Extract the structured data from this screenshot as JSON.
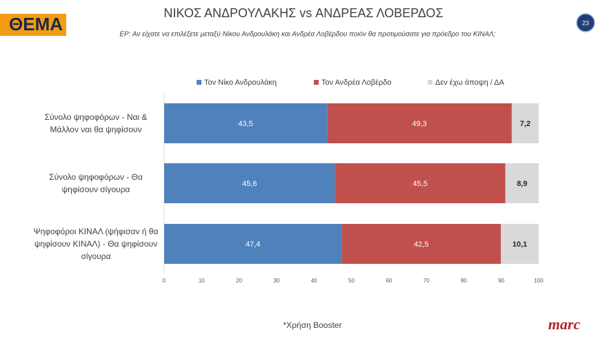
{
  "header": {
    "logo": "ΘΕΜΑ",
    "title": "ΝΙΚΟΣ ΑΝΔΡΟΥΛΑΚΗΣ vs ΑΝΔΡΕΑΣ ΛΟΒΕΡΔΟΣ",
    "subtitle": "ΕΡ: Αν είχατε να επιλέξετε μεταξύ Νίκου Ανδρουλάκη και Ανδρέα Λοβέρδου ποιόν θα προτιμούσατε για πρόεδρο του ΚΙΝΑΛ;",
    "page_number": "23"
  },
  "chart_data": {
    "type": "bar",
    "orientation": "horizontal",
    "stacked": true,
    "categories": [
      "Σύνολο ψηφοφόρων - Ναι & Μάλλον ναι θα ψηφίσουν",
      "Σύνολο ψηφοφόρων - Θα ψηφίσουν σίγουρα",
      "Ψηφοφόροι ΚΙΝΑΛ (ψήφισαν ή θα ψηφίσουν ΚΙΝΑΛ) - Θα ψηφίσουν σίγουρα"
    ],
    "series": [
      {
        "name": "Τον Νίκο Ανδρουλάκη",
        "color": "#4f81bd",
        "values": [
          43.5,
          45.6,
          47.4
        ],
        "value_labels": [
          "43,5",
          "45,6",
          "47,4"
        ]
      },
      {
        "name": "Τον Ανδρέα Λοβέρδο",
        "color": "#c0504d",
        "values": [
          49.3,
          45.5,
          42.5
        ],
        "value_labels": [
          "49,3",
          "45,5",
          "42,5"
        ]
      },
      {
        "name": "Δεν έχω άποψη / ΔΑ",
        "color": "#d9d9d9",
        "values": [
          7.2,
          8.9,
          10.1
        ],
        "value_labels": [
          "7,2",
          "8,9",
          "10,1"
        ]
      }
    ],
    "xlim": [
      0,
      100
    ],
    "xticks": [
      0,
      10,
      20,
      30,
      40,
      50,
      60,
      70,
      80,
      90,
      100
    ],
    "legend": "top",
    "grid": false
  },
  "footnote": "*Χρήση Booster",
  "brand": "marc"
}
